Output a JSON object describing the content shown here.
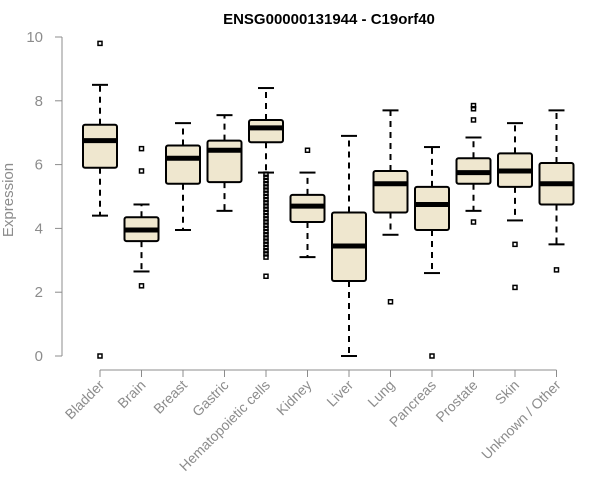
{
  "chart_data": {
    "type": "box",
    "title": "ENSG00000131944 - C19orf40",
    "ylabel": "Expression",
    "xlabel": "",
    "ylim": [
      0,
      10
    ],
    "yticks": [
      0,
      2,
      4,
      6,
      8,
      10
    ],
    "categories": [
      "Bladder",
      "Brain",
      "Breast",
      "Gastric",
      "Hematopoietic cells",
      "Kidney",
      "Liver",
      "Lung",
      "Pancreas",
      "Prostate",
      "Skin",
      "Unknown / Other"
    ],
    "boxes": [
      {
        "q1": 5.9,
        "median": 6.75,
        "q3": 7.25,
        "whisker_low": 4.4,
        "whisker_high": 8.5,
        "outliers": [
          9.8,
          0.0
        ]
      },
      {
        "q1": 3.6,
        "median": 3.95,
        "q3": 4.35,
        "whisker_low": 2.65,
        "whisker_high": 4.75,
        "outliers": [
          6.5,
          5.8,
          2.2
        ]
      },
      {
        "q1": 5.4,
        "median": 6.2,
        "q3": 6.6,
        "whisker_low": 3.95,
        "whisker_high": 7.3,
        "outliers": []
      },
      {
        "q1": 5.45,
        "median": 6.45,
        "q3": 6.75,
        "whisker_low": 4.55,
        "whisker_high": 7.55,
        "outliers": []
      },
      {
        "q1": 6.7,
        "median": 7.15,
        "q3": 7.4,
        "whisker_low": 5.75,
        "whisker_high": 8.4,
        "outliers": [
          5.7,
          5.6,
          5.5,
          5.4,
          5.3,
          5.2,
          5.1,
          5.0,
          4.9,
          4.8,
          4.7,
          4.6,
          4.5,
          4.4,
          4.3,
          4.2,
          4.1,
          4.0,
          3.9,
          3.8,
          3.7,
          3.6,
          3.5,
          3.4,
          3.3,
          3.2,
          3.1,
          2.5
        ]
      },
      {
        "q1": 4.2,
        "median": 4.7,
        "q3": 5.05,
        "whisker_low": 3.1,
        "whisker_high": 5.75,
        "outliers": [
          6.45
        ]
      },
      {
        "q1": 2.35,
        "median": 3.45,
        "q3": 4.5,
        "whisker_low": 0.0,
        "whisker_high": 6.9,
        "outliers": []
      },
      {
        "q1": 4.5,
        "median": 5.4,
        "q3": 5.8,
        "whisker_low": 3.8,
        "whisker_high": 7.7,
        "outliers": [
          1.7
        ]
      },
      {
        "q1": 3.95,
        "median": 4.75,
        "q3": 5.3,
        "whisker_low": 2.6,
        "whisker_high": 6.55,
        "outliers": [
          0.0
        ]
      },
      {
        "q1": 5.4,
        "median": 5.75,
        "q3": 6.2,
        "whisker_low": 4.55,
        "whisker_high": 6.85,
        "outliers": [
          7.85,
          7.75,
          7.4,
          4.2
        ]
      },
      {
        "q1": 5.3,
        "median": 5.8,
        "q3": 6.35,
        "whisker_low": 4.25,
        "whisker_high": 7.3,
        "outliers": [
          3.5,
          2.15
        ]
      },
      {
        "q1": 4.75,
        "median": 5.4,
        "q3": 6.05,
        "whisker_low": 3.5,
        "whisker_high": 7.7,
        "outliers": [
          2.7
        ]
      }
    ],
    "box_fill": "#efe7cf",
    "grid": false
  }
}
